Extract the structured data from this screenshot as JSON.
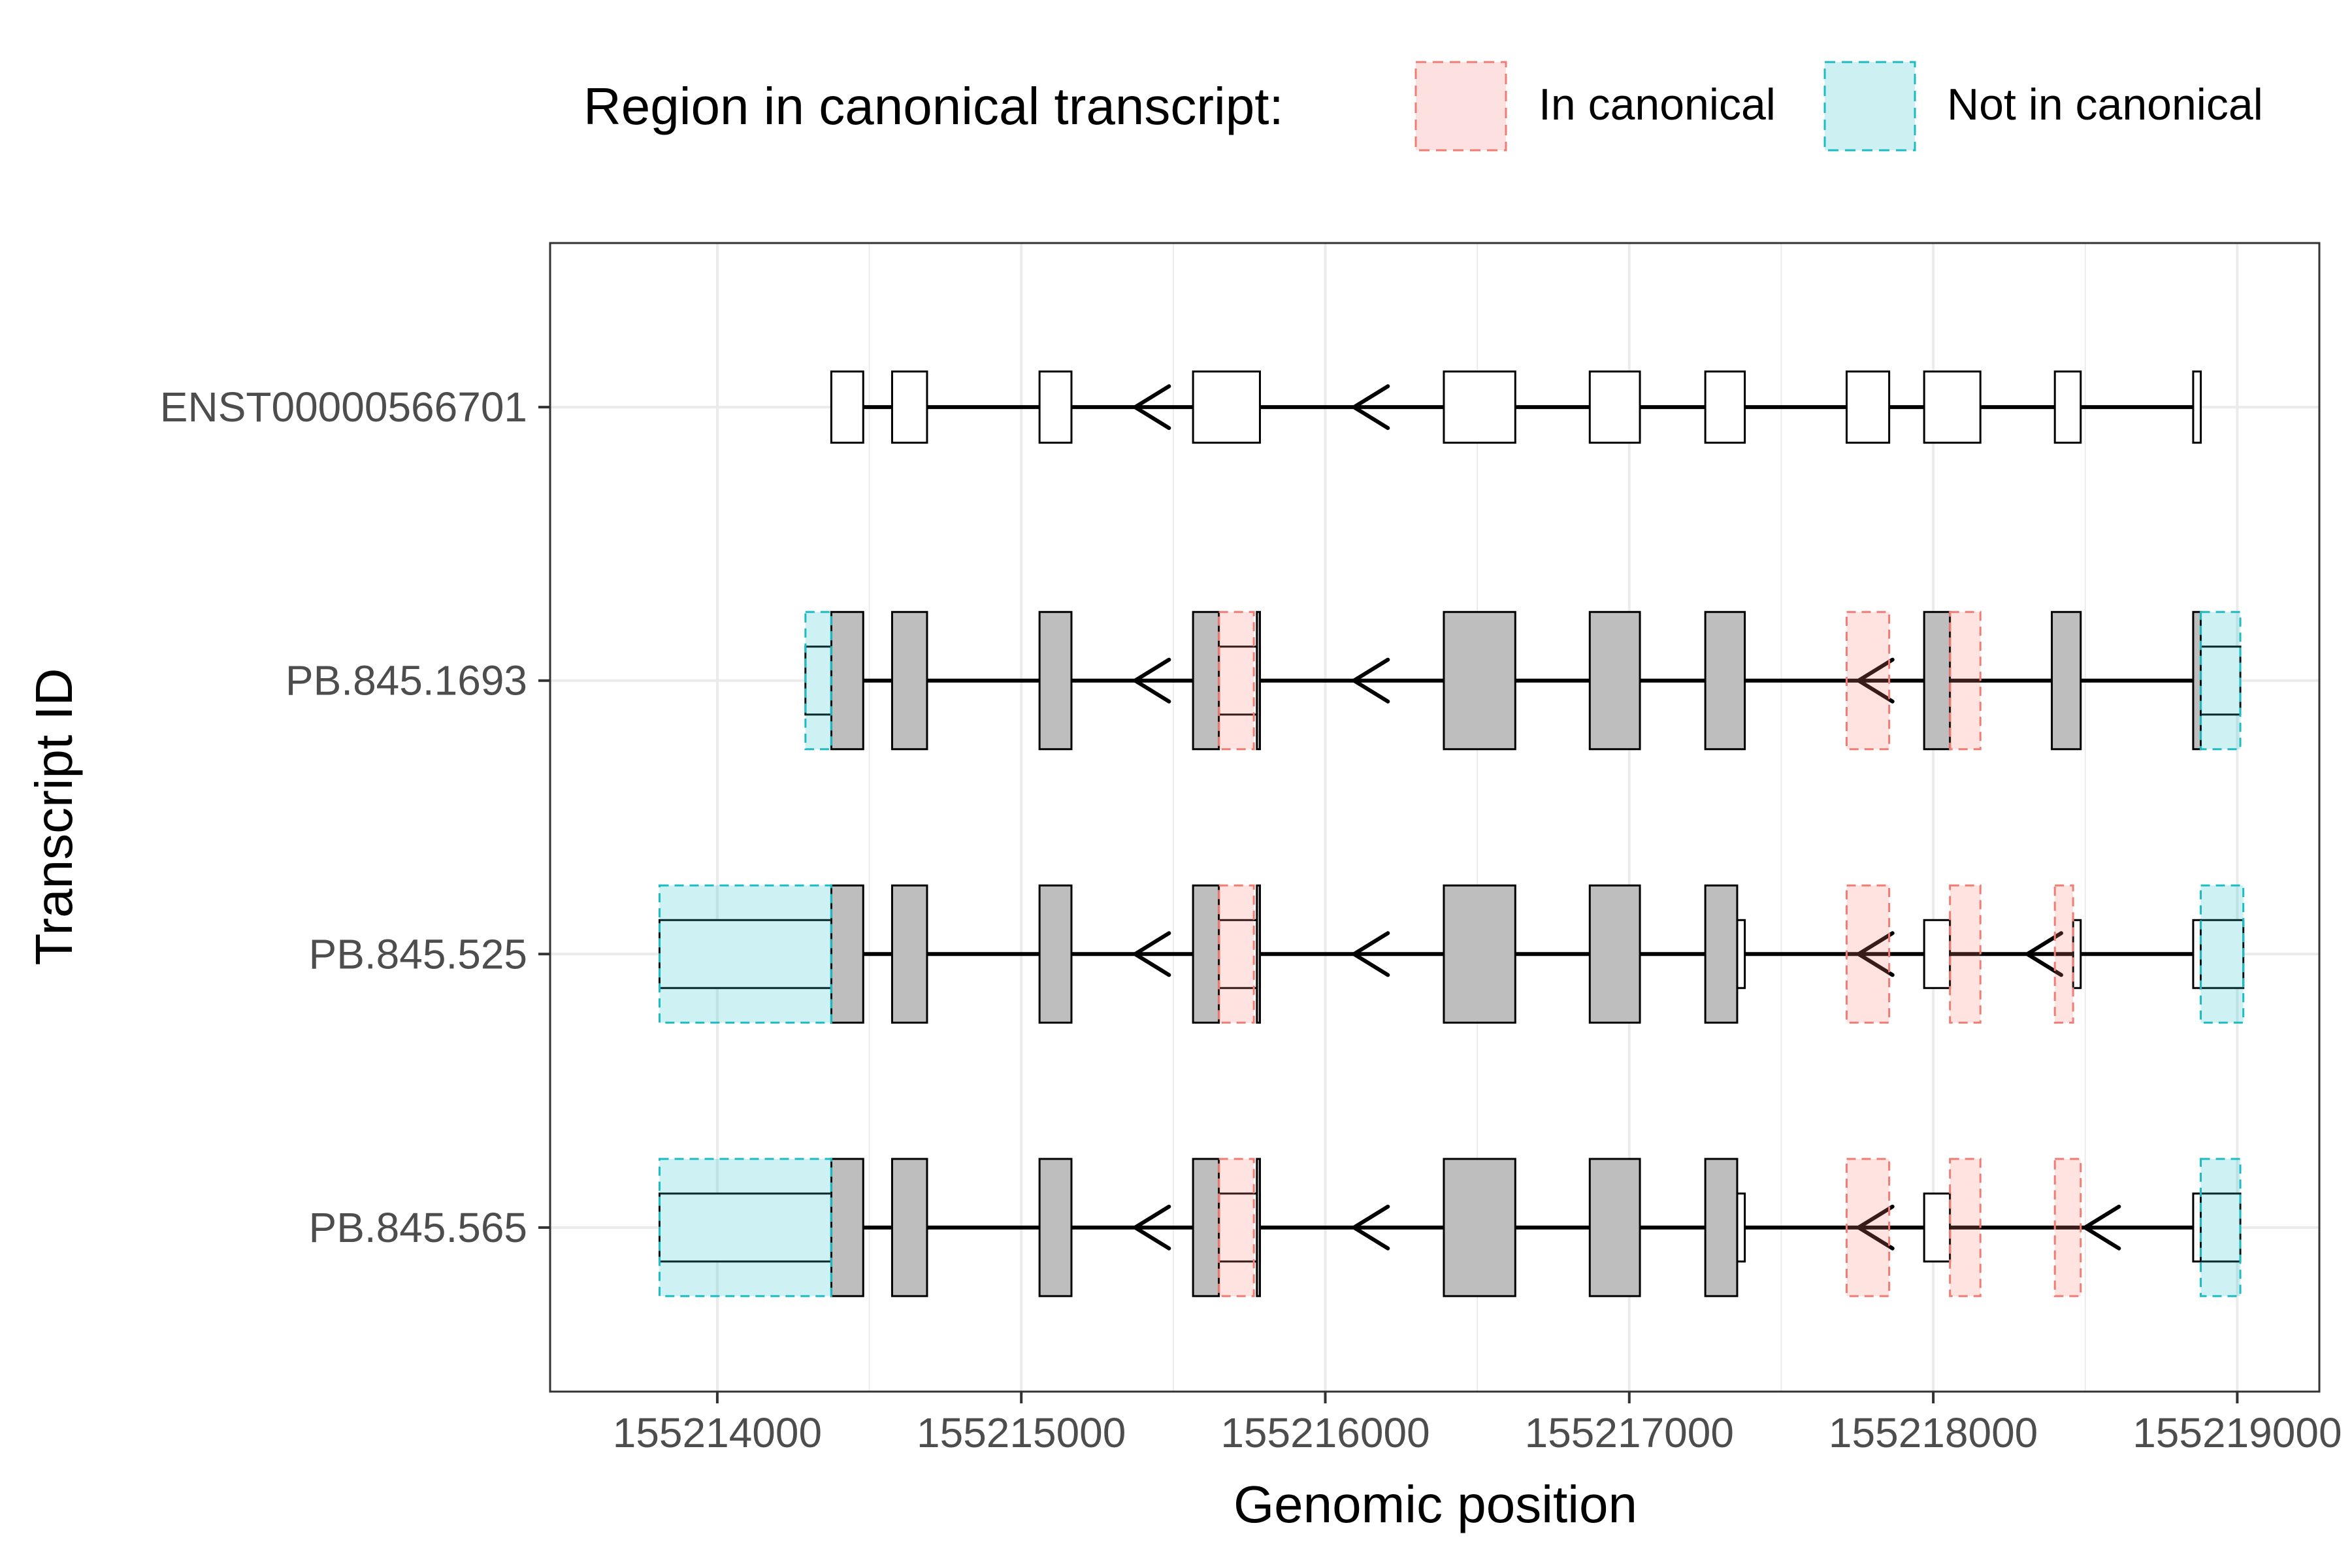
{
  "legend": {
    "title": "Region in canonical transcript:",
    "items": [
      {
        "label": "In canonical",
        "fill": "#fde0e0",
        "stroke": "#f07c74"
      },
      {
        "label": "Not in canonical",
        "fill": "#cdf0f2",
        "stroke": "#1cbcc4"
      }
    ]
  },
  "chart_data": {
    "type": "gene-structure",
    "xlabel": "Genomic position",
    "ylabel": "Transcript ID",
    "xlim": [
      155213450,
      155219270
    ],
    "xticks": [
      155214000,
      155215000,
      155216000,
      155217000,
      155218000,
      155219000
    ],
    "xtick_labels": [
      "155214000",
      "155215000",
      "155216000",
      "155217000",
      "155218000",
      "155219000"
    ],
    "grid": true,
    "colors": {
      "cds": "#bebebe",
      "utr": "#ffffff",
      "in_canonical": "#f07c74",
      "not_in_canonical": "#1cbcc4"
    },
    "transcripts": [
      {
        "id": "ENST00000566701",
        "line": [
          155214375,
          155218875
        ],
        "arrows": [
          155215400,
          155216120
        ],
        "exons": [
          {
            "start": 155214375,
            "end": 155214480,
            "type": "utr"
          },
          {
            "start": 155214575,
            "end": 155214690,
            "type": "utr"
          },
          {
            "start": 155215060,
            "end": 155215165,
            "type": "utr"
          },
          {
            "start": 155215565,
            "end": 155215785,
            "type": "utr"
          },
          {
            "start": 155216390,
            "end": 155216625,
            "type": "utr"
          },
          {
            "start": 155216870,
            "end": 155217035,
            "type": "utr"
          },
          {
            "start": 155217250,
            "end": 155217380,
            "type": "utr"
          },
          {
            "start": 155217715,
            "end": 155217855,
            "type": "utr"
          },
          {
            "start": 155217970,
            "end": 155218155,
            "type": "utr"
          },
          {
            "start": 155218400,
            "end": 155218485,
            "type": "utr"
          },
          {
            "start": 155218855,
            "end": 155218880,
            "type": "utr"
          }
        ],
        "regions": []
      },
      {
        "id": "PB.845.1693",
        "line": [
          155214290,
          155219010
        ],
        "arrows": [
          155215400,
          155216120,
          155217780
        ],
        "exons": [
          {
            "start": 155214290,
            "end": 155214375,
            "type": "utr"
          },
          {
            "start": 155214375,
            "end": 155214480,
            "type": "cds"
          },
          {
            "start": 155214575,
            "end": 155214690,
            "type": "cds"
          },
          {
            "start": 155215060,
            "end": 155215165,
            "type": "cds"
          },
          {
            "start": 155215565,
            "end": 155215650,
            "type": "cds"
          },
          {
            "start": 155215650,
            "end": 155215785,
            "type": "utr"
          },
          {
            "start": 155215775,
            "end": 155215785,
            "type": "cds"
          },
          {
            "start": 155216390,
            "end": 155216625,
            "type": "cds"
          },
          {
            "start": 155216870,
            "end": 155217035,
            "type": "cds"
          },
          {
            "start": 155217250,
            "end": 155217380,
            "type": "cds"
          },
          {
            "start": 155217970,
            "end": 155218055,
            "type": "cds"
          },
          {
            "start": 155218390,
            "end": 155218485,
            "type": "cds"
          },
          {
            "start": 155218855,
            "end": 155218880,
            "type": "cds"
          },
          {
            "start": 155218880,
            "end": 155219010,
            "type": "utr"
          }
        ],
        "regions": [
          {
            "start": 155214290,
            "end": 155214375,
            "status": "Not in canonical"
          },
          {
            "start": 155215650,
            "end": 155215765,
            "status": "In canonical"
          },
          {
            "start": 155217715,
            "end": 155217855,
            "status": "In canonical"
          },
          {
            "start": 155218055,
            "end": 155218155,
            "status": "In canonical"
          },
          {
            "start": 155218880,
            "end": 155219010,
            "status": "Not in canonical"
          }
        ]
      },
      {
        "id": "PB.845.525",
        "line": [
          155213810,
          155219020
        ],
        "arrows": [
          155215400,
          155216120,
          155217780,
          155218335
        ],
        "exons": [
          {
            "start": 155213810,
            "end": 155214375,
            "type": "utr"
          },
          {
            "start": 155214375,
            "end": 155214480,
            "type": "cds"
          },
          {
            "start": 155214575,
            "end": 155214690,
            "type": "cds"
          },
          {
            "start": 155215060,
            "end": 155215165,
            "type": "cds"
          },
          {
            "start": 155215565,
            "end": 155215650,
            "type": "cds"
          },
          {
            "start": 155215650,
            "end": 155215785,
            "type": "utr"
          },
          {
            "start": 155215775,
            "end": 155215785,
            "type": "cds"
          },
          {
            "start": 155216390,
            "end": 155216625,
            "type": "cds"
          },
          {
            "start": 155216870,
            "end": 155217035,
            "type": "cds"
          },
          {
            "start": 155217250,
            "end": 155217355,
            "type": "cds"
          },
          {
            "start": 155217355,
            "end": 155217380,
            "type": "utr"
          },
          {
            "start": 155217970,
            "end": 155218055,
            "type": "utr"
          },
          {
            "start": 155218460,
            "end": 155218485,
            "type": "utr"
          },
          {
            "start": 155218855,
            "end": 155218880,
            "type": "utr"
          },
          {
            "start": 155218880,
            "end": 155219020,
            "type": "utr"
          }
        ],
        "regions": [
          {
            "start": 155213810,
            "end": 155214375,
            "status": "Not in canonical"
          },
          {
            "start": 155215650,
            "end": 155215765,
            "status": "In canonical"
          },
          {
            "start": 155217715,
            "end": 155217855,
            "status": "In canonical"
          },
          {
            "start": 155218055,
            "end": 155218155,
            "status": "In canonical"
          },
          {
            "start": 155218400,
            "end": 155218460,
            "status": "In canonical"
          },
          {
            "start": 155218880,
            "end": 155219020,
            "status": "Not in canonical"
          }
        ]
      },
      {
        "id": "PB.845.565",
        "line": [
          155213810,
          155219010
        ],
        "arrows": [
          155215400,
          155216120,
          155217780,
          155218525
        ],
        "exons": [
          {
            "start": 155213810,
            "end": 155214375,
            "type": "utr"
          },
          {
            "start": 155214375,
            "end": 155214480,
            "type": "cds"
          },
          {
            "start": 155214575,
            "end": 155214690,
            "type": "cds"
          },
          {
            "start": 155215060,
            "end": 155215165,
            "type": "cds"
          },
          {
            "start": 155215565,
            "end": 155215650,
            "type": "cds"
          },
          {
            "start": 155215650,
            "end": 155215785,
            "type": "utr"
          },
          {
            "start": 155215775,
            "end": 155215785,
            "type": "cds"
          },
          {
            "start": 155216390,
            "end": 155216625,
            "type": "cds"
          },
          {
            "start": 155216870,
            "end": 155217035,
            "type": "cds"
          },
          {
            "start": 155217250,
            "end": 155217355,
            "type": "cds"
          },
          {
            "start": 155217355,
            "end": 155217380,
            "type": "utr"
          },
          {
            "start": 155217970,
            "end": 155218055,
            "type": "utr"
          },
          {
            "start": 155218855,
            "end": 155218880,
            "type": "utr"
          },
          {
            "start": 155218880,
            "end": 155219010,
            "type": "utr"
          }
        ],
        "regions": [
          {
            "start": 155213810,
            "end": 155214375,
            "status": "Not in canonical"
          },
          {
            "start": 155215650,
            "end": 155215765,
            "status": "In canonical"
          },
          {
            "start": 155217715,
            "end": 155217855,
            "status": "In canonical"
          },
          {
            "start": 155218055,
            "end": 155218155,
            "status": "In canonical"
          },
          {
            "start": 155218400,
            "end": 155218485,
            "status": "In canonical"
          },
          {
            "start": 155218880,
            "end": 155219010,
            "status": "Not in canonical"
          }
        ]
      }
    ]
  }
}
